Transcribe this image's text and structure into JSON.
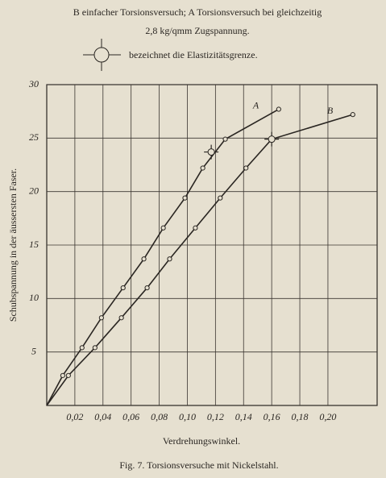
{
  "chart_data": {
    "type": "line",
    "header": [
      "B einfacher Torsionsversuch; A Torsionsversuch bei gleichzeitig",
      "2,8 kg/qmm Zugspannung."
    ],
    "legend_text": "bezeichnet die Elastizitätsgrenze.",
    "ylabel": "Schubspannung in der äussersten Faser.",
    "xlabel": "Verdrehungswinkel.",
    "caption": "Fig. 7. Torsionsversuche mit Nickelstahl.",
    "xlim": [
      0,
      0.235
    ],
    "ylim": [
      0,
      30
    ],
    "xticks": [
      {
        "value": 0.02,
        "label": "0,02"
      },
      {
        "value": 0.04,
        "label": "0,04"
      },
      {
        "value": 0.06,
        "label": "0,06"
      },
      {
        "value": 0.08,
        "label": "0,08"
      },
      {
        "value": 0.1,
        "label": "0,10"
      },
      {
        "value": 0.12,
        "label": "0,12"
      },
      {
        "value": 0.14,
        "label": "0,14"
      },
      {
        "value": 0.16,
        "label": "0,16"
      },
      {
        "value": 0.18,
        "label": "0,18"
      },
      {
        "value": 0.2,
        "label": "0,20"
      }
    ],
    "yticks": [
      5,
      10,
      15,
      20,
      25,
      30
    ],
    "grid": true,
    "series": [
      {
        "name": "A",
        "color": "#2a2622",
        "x": [
          0,
          0.0114,
          0.0251,
          0.0389,
          0.0543,
          0.0691,
          0.0829,
          0.0983,
          0.111,
          0.127,
          0.165
        ],
        "values": [
          0,
          2.8,
          5.4,
          8.2,
          11.0,
          13.7,
          16.6,
          19.4,
          22.2,
          24.9,
          27.7
        ],
        "elastic_limit": {
          "x": 0.117,
          "y": 23.7
        }
      },
      {
        "name": "B",
        "color": "#2a2622",
        "x": [
          0,
          0.0154,
          0.0343,
          0.0531,
          0.0714,
          0.0874,
          0.1057,
          0.1234,
          0.1417,
          0.16,
          0.2177
        ],
        "values": [
          0,
          2.8,
          5.4,
          8.2,
          11.0,
          13.7,
          16.6,
          19.4,
          22.2,
          24.9,
          27.2
        ],
        "elastic_limit": {
          "x": 0.16,
          "y": 24.9
        }
      }
    ]
  }
}
